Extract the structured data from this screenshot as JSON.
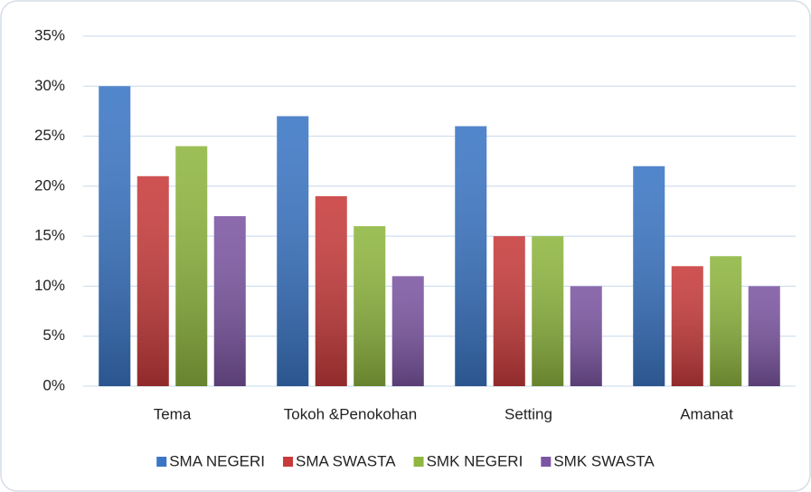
{
  "chart_data": {
    "type": "bar",
    "categories": [
      "Tema",
      "Tokoh &Penokohan",
      "Setting",
      "Amanat"
    ],
    "series": [
      {
        "name": "SMA NEGERI",
        "color": "#3b76c5",
        "values": [
          30,
          27,
          26,
          22
        ]
      },
      {
        "name": "SMA SWASTA",
        "color": "#c83b3b",
        "values": [
          21,
          19,
          15,
          12
        ]
      },
      {
        "name": "SMK NEGERI",
        "color": "#8fb63f",
        "values": [
          24,
          16,
          15,
          13
        ]
      },
      {
        "name": "SMK SWASTA",
        "color": "#7c56a2",
        "values": [
          17,
          11,
          10,
          10
        ]
      }
    ],
    "ylim": [
      0,
      35
    ],
    "yticks": [
      {
        "value": 0,
        "label": "0%"
      },
      {
        "value": 5,
        "label": "5%"
      },
      {
        "value": 10,
        "label": "10%"
      },
      {
        "value": 15,
        "label": "15%"
      },
      {
        "value": 20,
        "label": "20%"
      },
      {
        "value": 25,
        "label": "25%"
      },
      {
        "value": 30,
        "label": "30%"
      },
      {
        "value": 35,
        "label": "35%"
      }
    ],
    "grid": true,
    "legend": "bottom"
  }
}
